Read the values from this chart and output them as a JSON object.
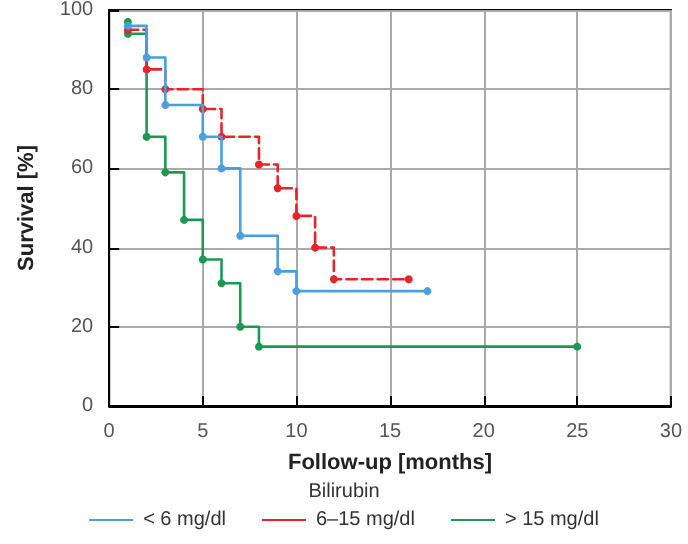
{
  "chart_data": {
    "type": "step",
    "xlabel": "Follow-up [months]",
    "ylabel": "Survival [%]",
    "legend_title": "Bilirubin",
    "series": [
      {
        "name": "< 6 mg/dl",
        "color": "#4a9fe0",
        "line_style": "solid",
        "x": [
          1,
          2,
          3,
          5,
          6,
          7,
          9,
          10,
          17
        ],
        "values": [
          96,
          88,
          76,
          68,
          60,
          43,
          34,
          29,
          29
        ]
      },
      {
        "name": "6–15 mg/dl",
        "color": "#e8232a",
        "line_style": "dashed",
        "x": [
          1,
          2,
          3,
          5,
          6,
          8,
          9,
          10,
          11,
          12,
          16
        ],
        "values": [
          95,
          85,
          80,
          75,
          68,
          61,
          55,
          48,
          40,
          32,
          32
        ]
      },
      {
        "name": "> 15 mg/dl",
        "color": "#1a9a50",
        "line_style": "solid",
        "x": [
          1,
          1,
          2,
          3,
          4,
          5,
          6,
          7,
          8,
          25
        ],
        "values": [
          97,
          94,
          68,
          59,
          47,
          37,
          31,
          20,
          15,
          15
        ]
      }
    ],
    "xlim": [
      0,
      30
    ],
    "xticks": [
      0,
      5,
      10,
      15,
      20,
      25,
      30
    ],
    "ylim": [
      0,
      100
    ],
    "yticks": [
      0,
      20,
      40,
      60,
      80,
      100
    ],
    "grid": true,
    "legend": "bottom",
    "marker": "circle"
  }
}
